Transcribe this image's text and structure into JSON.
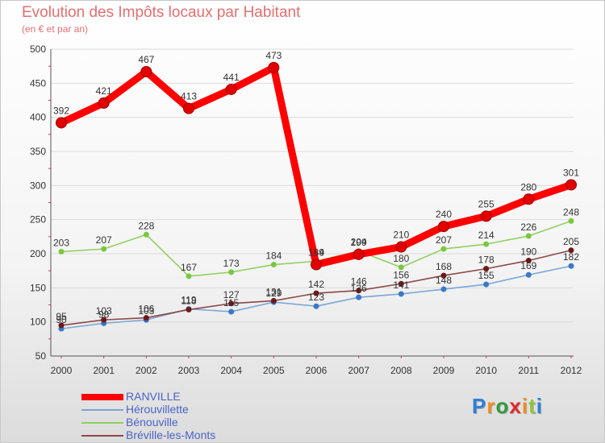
{
  "title": "Evolution des Impôts locaux par Habitant",
  "subtitle": "(en € et par an)",
  "logo": {
    "letters": [
      "P",
      "r",
      "o",
      "x",
      "i",
      "t",
      "i"
    ],
    "colors": [
      "#2d7fd8",
      "#f08c1c",
      "#2d9c3c",
      "#e02828",
      "#f08c1c",
      "#8cc63c",
      "#2d7fd8"
    ]
  },
  "chart_data": {
    "type": "line",
    "title": "Evolution des Impôts locaux par Habitant",
    "subtitle": "(en € et par an)",
    "x": [
      2000,
      2001,
      2002,
      2003,
      2004,
      2005,
      2006,
      2007,
      2008,
      2009,
      2010,
      2011,
      2012
    ],
    "ylim": [
      50,
      500
    ],
    "yticks": [
      50,
      100,
      150,
      200,
      250,
      300,
      350,
      400,
      450,
      500
    ],
    "legend_position": "bottom-left",
    "series": [
      {
        "name": "RANVILLE",
        "color": "#ff0000",
        "markerColor": "#e00000",
        "thick": true,
        "values": [
          392,
          421,
          467,
          413,
          441,
          473,
          184,
          199,
          210,
          240,
          255,
          280,
          301
        ],
        "labels": [
          "392",
          "421",
          "467",
          "413",
          "441",
          "473",
          "184",
          "199",
          "210",
          "240",
          "255",
          "280",
          "301"
        ]
      },
      {
        "name": "Hérouvillette",
        "color": "#7aa6d6",
        "markerColor": "#3a78c8",
        "thick": false,
        "values": [
          90,
          98,
          103,
          119,
          115,
          129,
          123,
          136,
          141,
          148,
          155,
          169,
          182
        ],
        "labels": [
          "90",
          "98",
          "103",
          "119",
          "115",
          "129",
          "123",
          "136",
          "141",
          "148",
          "155",
          "169",
          "182"
        ]
      },
      {
        "name": "Bénouville",
        "color": "#90d060",
        "markerColor": "#78c840",
        "thick": false,
        "values": [
          203,
          207,
          228,
          167,
          173,
          184,
          189,
          204,
          180,
          207,
          214,
          226,
          248
        ],
        "labels": [
          "203",
          "207",
          "228",
          "167",
          "173",
          "184",
          "189",
          "204",
          "180",
          "207",
          "214",
          "226",
          "248"
        ]
      },
      {
        "name": "Bréville-les-Monts",
        "color": "#8c4848",
        "markerColor": "#6e1818",
        "thick": false,
        "values": [
          95,
          103,
          106,
          118,
          127,
          131,
          142,
          146,
          156,
          168,
          178,
          190,
          205
        ],
        "labels": [
          "95",
          "103",
          "106",
          "118",
          "127",
          "131",
          "142",
          "146",
          "156",
          "168",
          "178",
          "190",
          "205"
        ]
      }
    ]
  }
}
